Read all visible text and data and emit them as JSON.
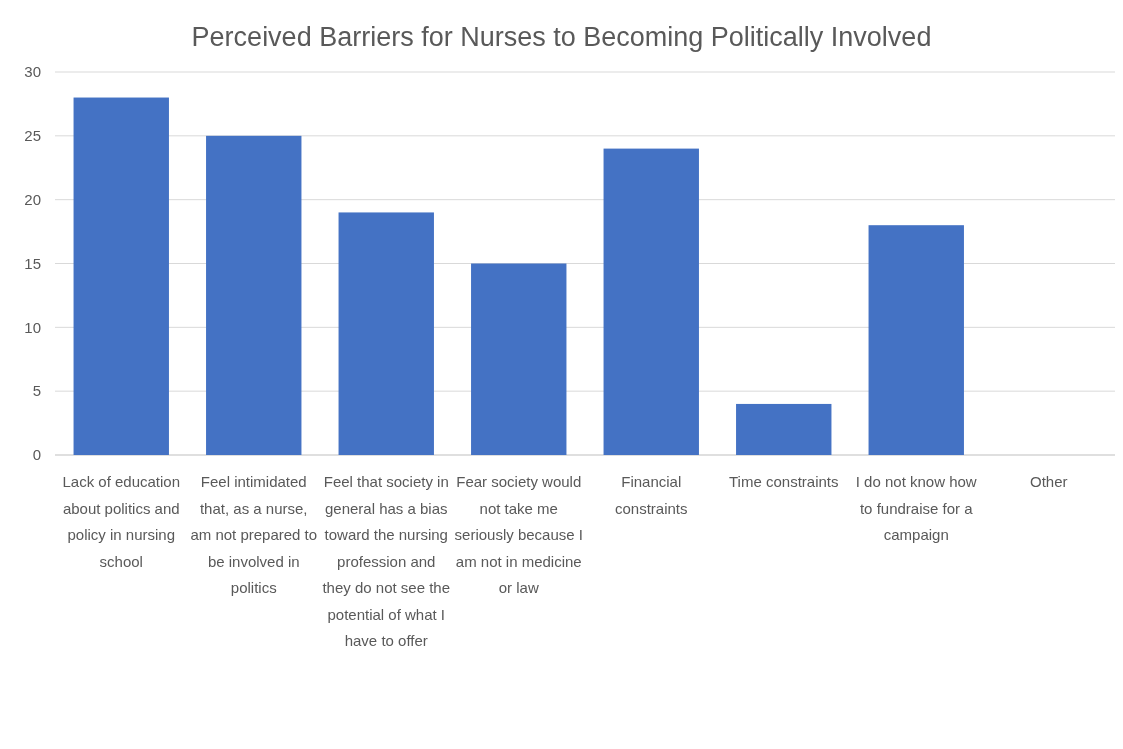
{
  "chart_data": {
    "type": "bar",
    "title": "Perceived Barriers for Nurses to Becoming Politically Involved",
    "categories": [
      "Lack of education about politics and policy in nursing school",
      "Feel intimidated that, as a nurse, am not prepared to be involved in politics",
      "Feel that society in general has a bias toward the nursing profession and they do not see the potential of what I have to offer",
      "Fear society would not take me seriously because I am not in medicine or law",
      "Financial constraints",
      "Time constraints",
      "I do not know how to fundraise for a campaign",
      "Other"
    ],
    "values": [
      28,
      25,
      19,
      15,
      24,
      4,
      18,
      0
    ],
    "color": "#4472c4",
    "ylim": [
      0,
      30
    ],
    "yticks": [
      0,
      5,
      10,
      15,
      20,
      25,
      30
    ],
    "grid": "y"
  }
}
